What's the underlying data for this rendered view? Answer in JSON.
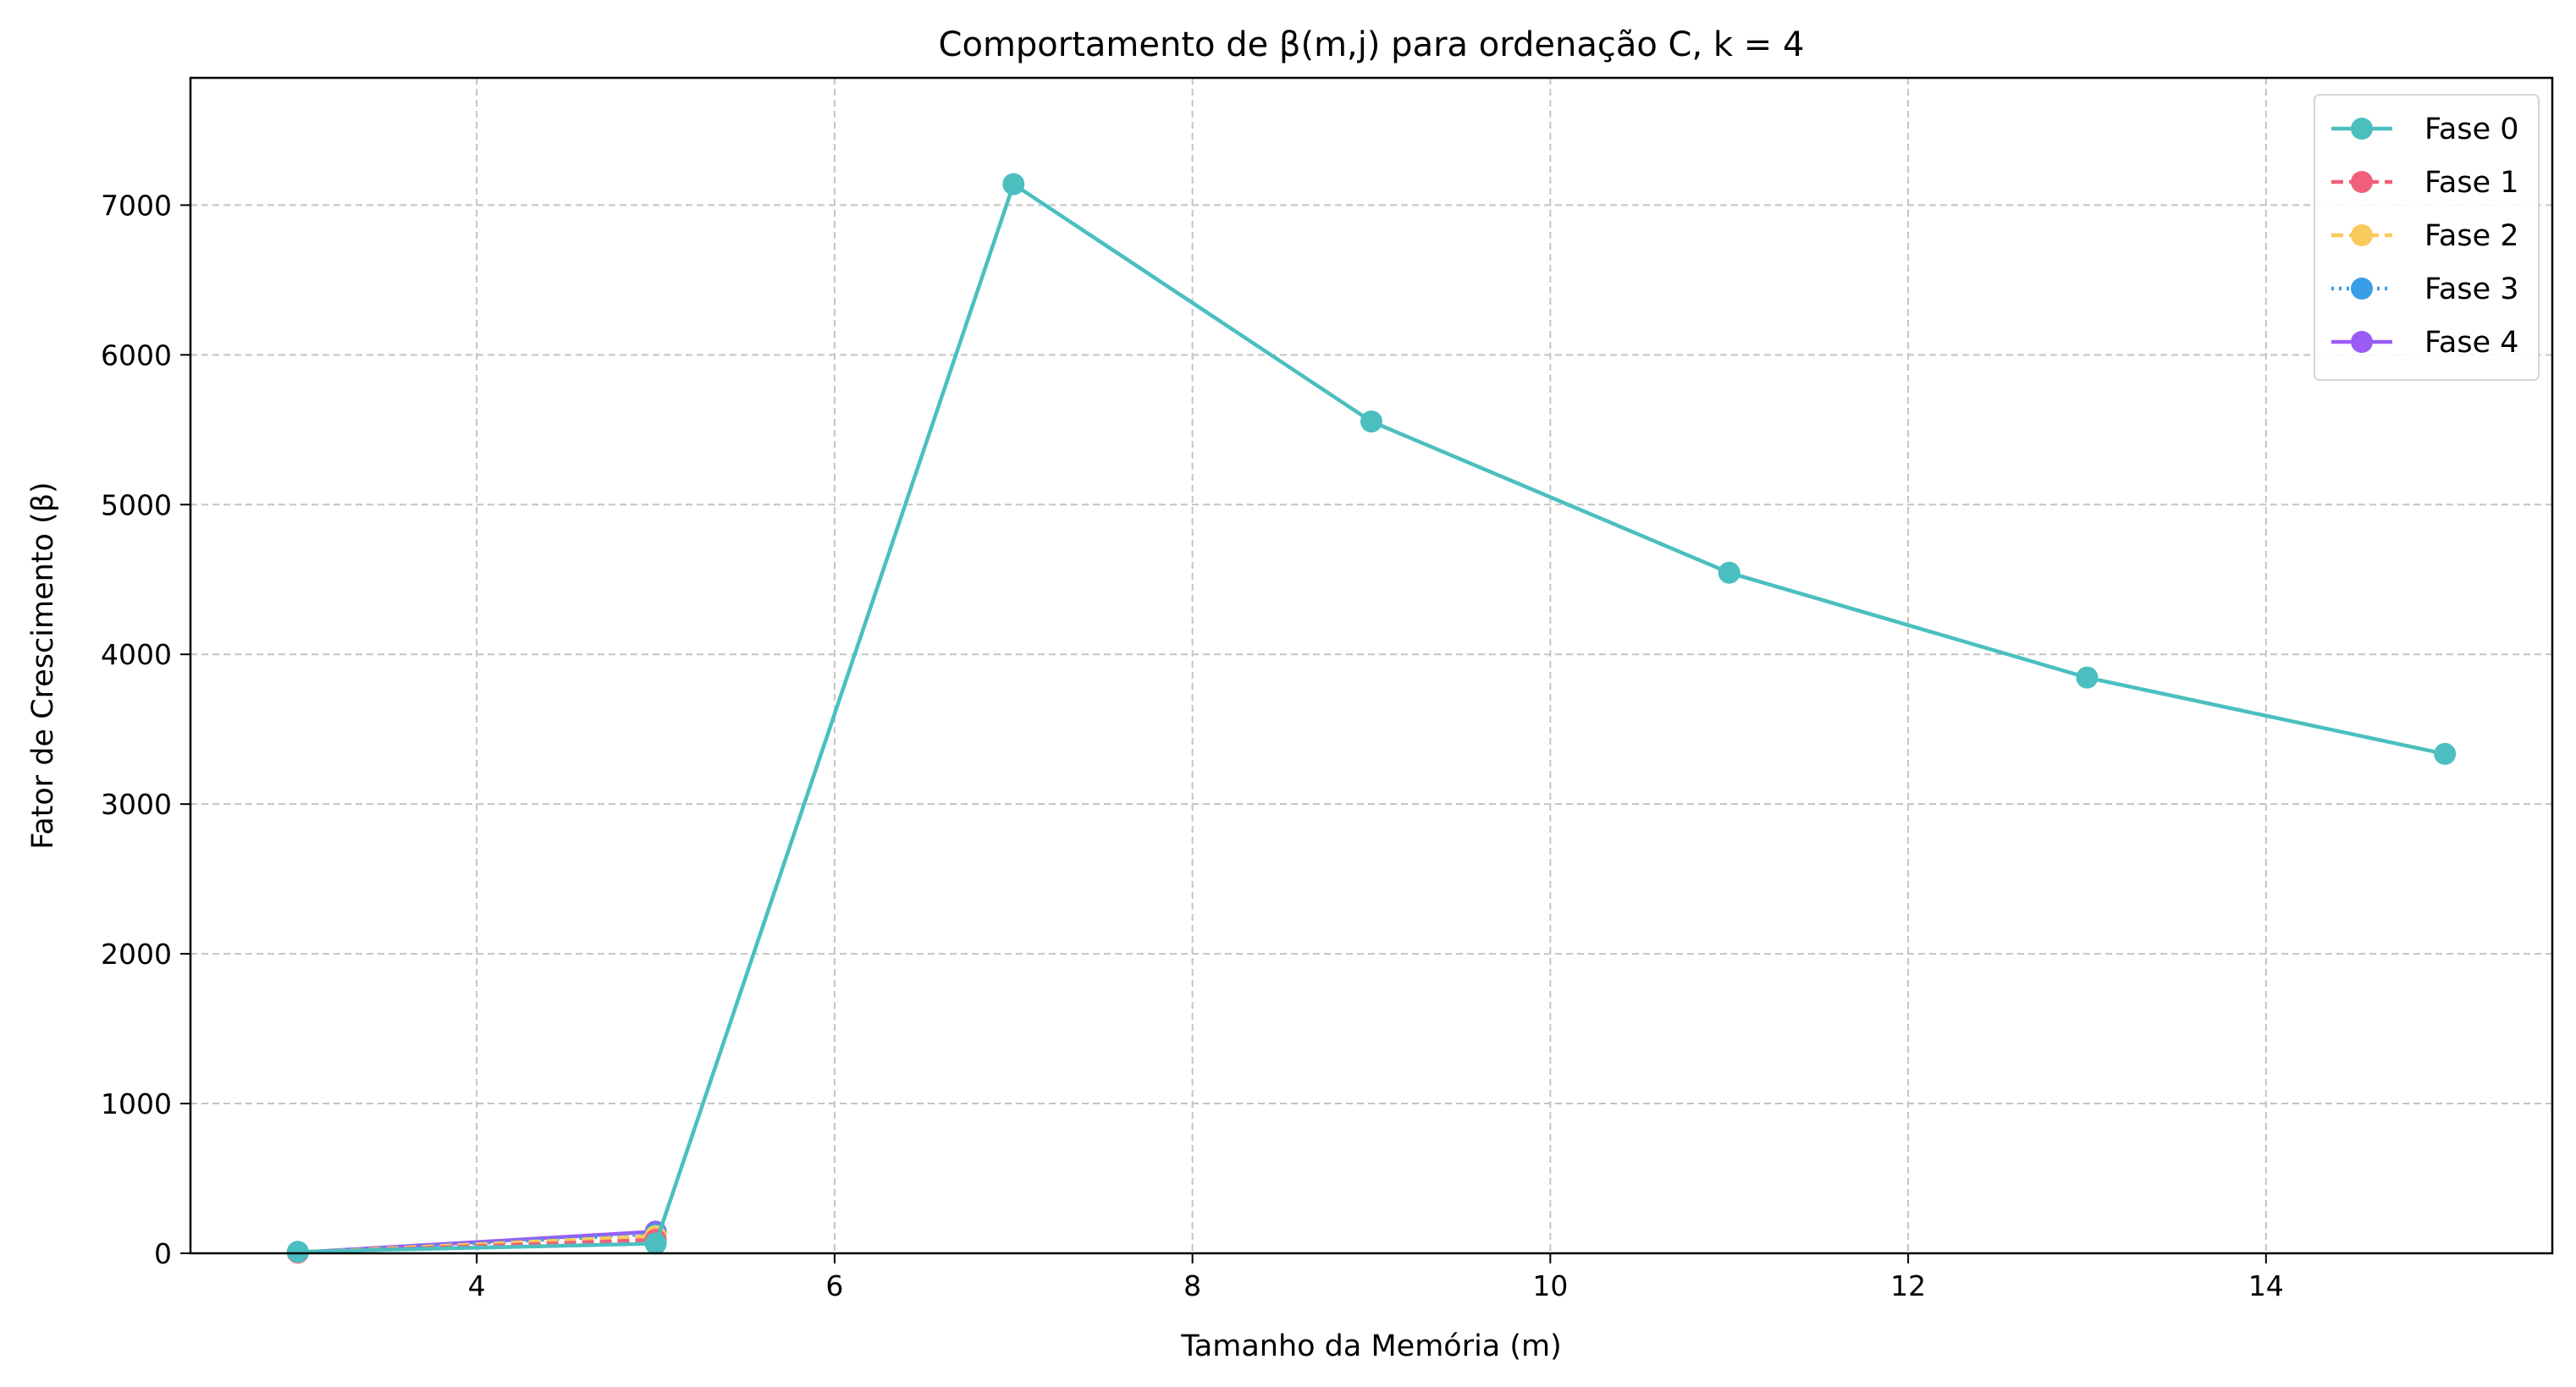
{
  "chart_data": {
    "type": "line",
    "title": "Comportamento de β(m,j) para ordenação C, k = 4",
    "xlabel": "Tamanho da Memória (m)",
    "ylabel": "Fator de Crescimento (β)",
    "xlim": [
      2.4,
      15.6
    ],
    "ylim": [
      0,
      7850
    ],
    "xticks": [
      4,
      6,
      8,
      10,
      12,
      14
    ],
    "yticks": [
      0,
      1000,
      2000,
      3000,
      4000,
      5000,
      6000,
      7000
    ],
    "grid": true,
    "legend_position": "top-right",
    "series": [
      {
        "name": "Fase 0",
        "color": "#4bbfbf",
        "dash": "solid",
        "x": [
          3,
          5,
          7,
          9,
          11,
          13,
          15
        ],
        "y": [
          10,
          65,
          7140,
          5555,
          4545,
          3845,
          3335
        ]
      },
      {
        "name": "Fase 1",
        "color": "#f0607a",
        "dash": "dashed",
        "x": [
          3,
          5
        ],
        "y": [
          5,
          90
        ]
      },
      {
        "name": "Fase 2",
        "color": "#f8c95c",
        "dash": "dashed",
        "x": [
          3,
          5
        ],
        "y": [
          5,
          115
        ]
      },
      {
        "name": "Fase 3",
        "color": "#3a9de8",
        "dash": "dotted",
        "x": [
          3,
          5
        ],
        "y": [
          5,
          130
        ]
      },
      {
        "name": "Fase 4",
        "color": "#9b5cf6",
        "dash": "solid",
        "x": [
          3,
          5
        ],
        "y": [
          5,
          145
        ]
      }
    ]
  }
}
